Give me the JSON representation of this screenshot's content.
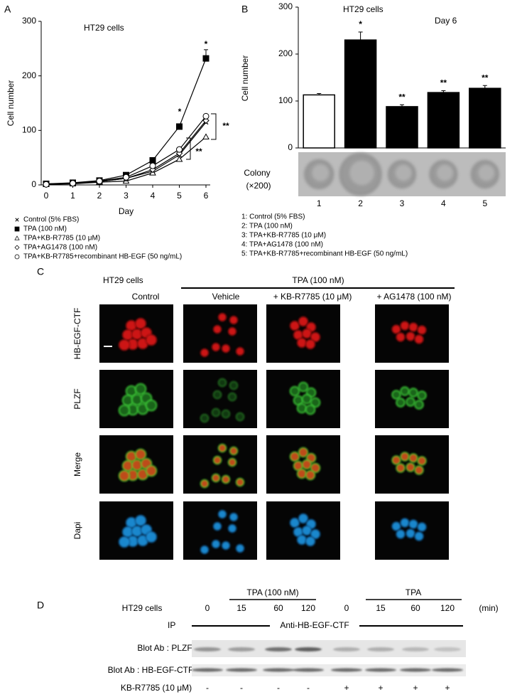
{
  "chart_data": [
    {
      "type": "line",
      "panel": "A",
      "title": "HT29 cells",
      "x_label": "Day",
      "y_label": "Cell number",
      "x": [
        0,
        1,
        2,
        3,
        4,
        5,
        6
      ],
      "xlim": [
        0,
        6
      ],
      "xticks": [
        0,
        1,
        2,
        3,
        4,
        5,
        6
      ],
      "ylim": [
        0,
        300
      ],
      "yticks": [
        0,
        100,
        200,
        300
      ],
      "series": [
        {
          "name": "Control (5% FBS)",
          "marker": "x",
          "color": "#000000",
          "filled": false,
          "values": [
            2,
            3,
            6,
            12,
            25,
            55,
            115
          ]
        },
        {
          "name": "TPA (100 nM)",
          "marker": "square",
          "color": "#000000",
          "filled": true,
          "values": [
            2,
            4,
            8,
            18,
            45,
            107,
            232
          ],
          "errors": [
            null,
            null,
            null,
            null,
            null,
            null,
            16
          ]
        },
        {
          "name": "TPA+KB-R7785 (10 μM)",
          "marker": "triangle",
          "color": "#000000",
          "filled": false,
          "values": [
            1,
            2,
            5,
            7,
            22,
            47,
            88
          ]
        },
        {
          "name": "TPA+AG1478 (100 nM)",
          "marker": "diamond",
          "color": "#000000",
          "filled": false,
          "values": [
            1,
            3,
            6,
            12,
            28,
            58,
            118
          ]
        },
        {
          "name": "TPA+KB-R7785+recombinant HB-EGF (50 ng/mL)",
          "marker": "circle",
          "color": "#000000",
          "filled": false,
          "values": [
            1,
            3,
            7,
            14,
            35,
            65,
            126
          ]
        }
      ],
      "annotations": [
        "*",
        "*",
        "**",
        "**"
      ]
    },
    {
      "type": "bar",
      "panel": "B",
      "title": "HT29 cells",
      "subtitle": "Day 6",
      "y_label": "Cell number",
      "categories": [
        "1",
        "2",
        "3",
        "4",
        "5"
      ],
      "values": [
        113,
        230,
        88,
        118,
        127
      ],
      "errors": [
        3,
        17,
        4,
        4,
        6
      ],
      "colors": [
        "#ffffff",
        "#000000",
        "#000000",
        "#000000",
        "#000000"
      ],
      "ylim": [
        0,
        300
      ],
      "yticks": [
        0,
        100,
        200,
        300
      ],
      "annotations": [
        null,
        "*",
        "**",
        "**",
        "**"
      ],
      "image_label": "Colony",
      "image_magnification": "(×200)",
      "notes": [
        "1: Control (5% FBS)",
        "2: TPA (100 nM)",
        "3: TPA+KB-R7785 (10 μM)",
        "4: TPA+AG1478 (100 nM)",
        "5: TPA+KB-R7785+recombinant HB-EGF (50 ng/mL)"
      ]
    }
  ],
  "panel_c": {
    "label": "C",
    "cell_line": "HT29 cells",
    "treatment": "TPA (100 nM)",
    "columns": [
      "Control",
      "Vehicle",
      "+ KB-R7785 (10 μM)",
      "+ AG1478 (100 nM)"
    ],
    "rows": [
      "HB-EGF-CTF",
      "PLZF",
      "Merge",
      "Dapi"
    ]
  },
  "panel_d": {
    "label": "D",
    "cell_line": "HT29 cells",
    "groups": [
      "TPA (100 nM)",
      "TPA"
    ],
    "unit": "(min)",
    "times": [
      "0",
      "15",
      "60",
      "120",
      "0",
      "15",
      "60",
      "120"
    ],
    "ip_label": "IP",
    "ip_antibody": "Anti-HB-EGF-CTF",
    "blots": [
      "Blot Ab : PLZF",
      "Blot Ab : HB-EGF-CTF"
    ],
    "inhibitor": "KB-R7785 (10 μM)",
    "inhibitor_status": [
      "-",
      "-",
      "-",
      "-",
      "+",
      "+",
      "+",
      "+"
    ]
  }
}
